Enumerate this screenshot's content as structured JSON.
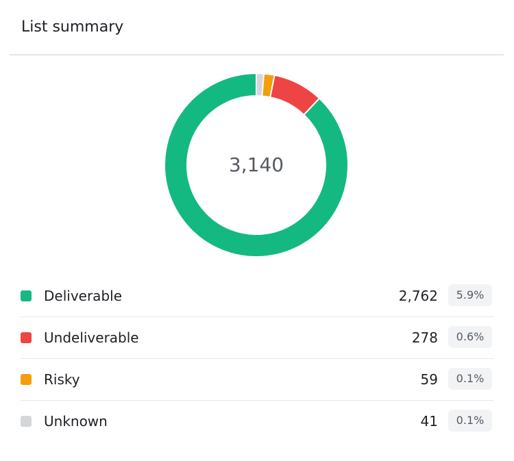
{
  "card": {
    "title": "List summary"
  },
  "chart_data": {
    "type": "pie",
    "variant": "donut",
    "total_label": "3,140",
    "categories": [
      "Deliverable",
      "Undeliverable",
      "Risky",
      "Unknown"
    ],
    "values": [
      2762,
      278,
      59,
      41
    ],
    "colors": [
      "#14b981",
      "#ef4444",
      "#f59e0b",
      "#d4d6da"
    ],
    "title": "",
    "legend": "bottom"
  },
  "legend": {
    "rows": [
      {
        "label": "Deliverable",
        "count": "2,762",
        "percent": "5.9%",
        "color": "#14b981"
      },
      {
        "label": "Undeliverable",
        "count": "278",
        "percent": "0.6%",
        "color": "#ef4444"
      },
      {
        "label": "Risky",
        "count": "59",
        "percent": "0.1%",
        "color": "#f59e0b"
      },
      {
        "label": "Unknown",
        "count": "41",
        "percent": "0.1%",
        "color": "#d4d6da"
      }
    ]
  }
}
